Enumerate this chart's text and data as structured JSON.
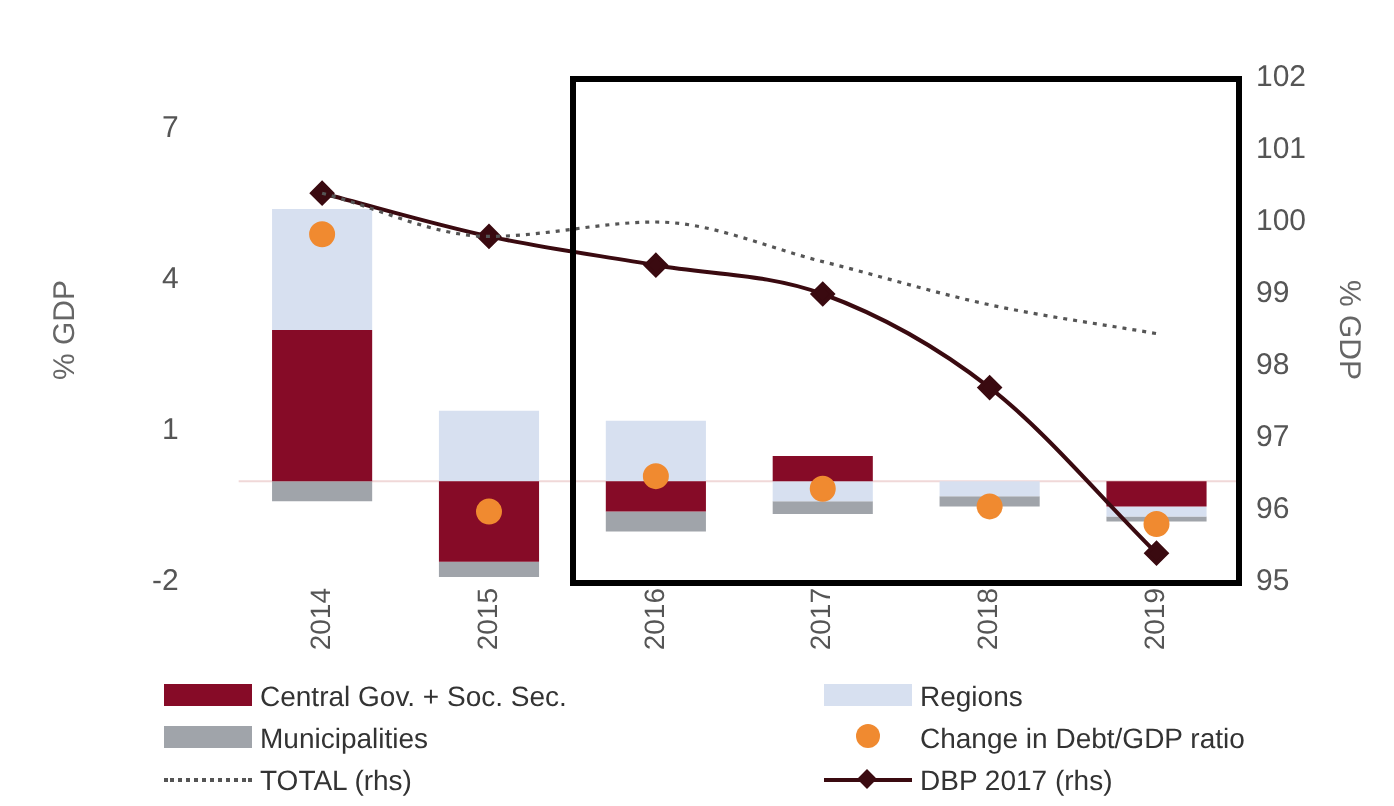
{
  "chart_data": {
    "type": "bar",
    "stacked": true,
    "ylabel": "% GDP",
    "y2label": "% GDP",
    "categories": [
      "2014",
      "2015",
      "2016",
      "2017",
      "2018",
      "2019"
    ],
    "series": [
      {
        "name": "Central Gov. + Soc. Sec.",
        "color": "#860b27",
        "values": [
          3.0,
          -1.6,
          -0.6,
          0.5,
          null,
          -0.5
        ]
      },
      {
        "name": "Regions",
        "color": "#d7e0f0",
        "values": [
          2.4,
          1.4,
          1.2,
          -0.4,
          -0.3,
          -0.2
        ]
      },
      {
        "name": "Municipalities",
        "color": "#a0a4aa",
        "values": [
          -0.4,
          -0.3,
          -0.4,
          -0.25,
          -0.2,
          -0.1
        ]
      },
      {
        "name": "Change in Debt/GDP ratio",
        "type": "scatter",
        "marker": "circle",
        "color": "#f08a30",
        "values": [
          4.9,
          -0.6,
          0.1,
          -0.15,
          -0.5,
          -0.85
        ]
      },
      {
        "name": "TOTAL (rhs)",
        "type": "line",
        "axis": "y2",
        "line_style": "dotted",
        "marker": "none",
        "color": "#555555",
        "values": [
          100.4,
          99.8,
          100.0,
          99.45,
          98.85,
          98.45
        ]
      },
      {
        "name": "DBP 2017 (rhs)",
        "type": "line",
        "axis": "y2",
        "line_style": "solid",
        "marker": "diamond",
        "color": "#3a0a10",
        "values": [
          100.4,
          99.8,
          99.4,
          99.0,
          97.7,
          95.4
        ]
      }
    ],
    "ylim": [
      -2,
      8
    ],
    "yticks": [
      -2,
      1,
      4,
      7
    ],
    "y2lim": [
      95,
      102
    ],
    "y2ticks": [
      95,
      96,
      97,
      98,
      99,
      100,
      101,
      102
    ],
    "ref_lines": [
      {
        "axis": "y",
        "value": 0,
        "color": "#f0d8d8"
      }
    ],
    "grid": false,
    "legend": "bottom"
  }
}
